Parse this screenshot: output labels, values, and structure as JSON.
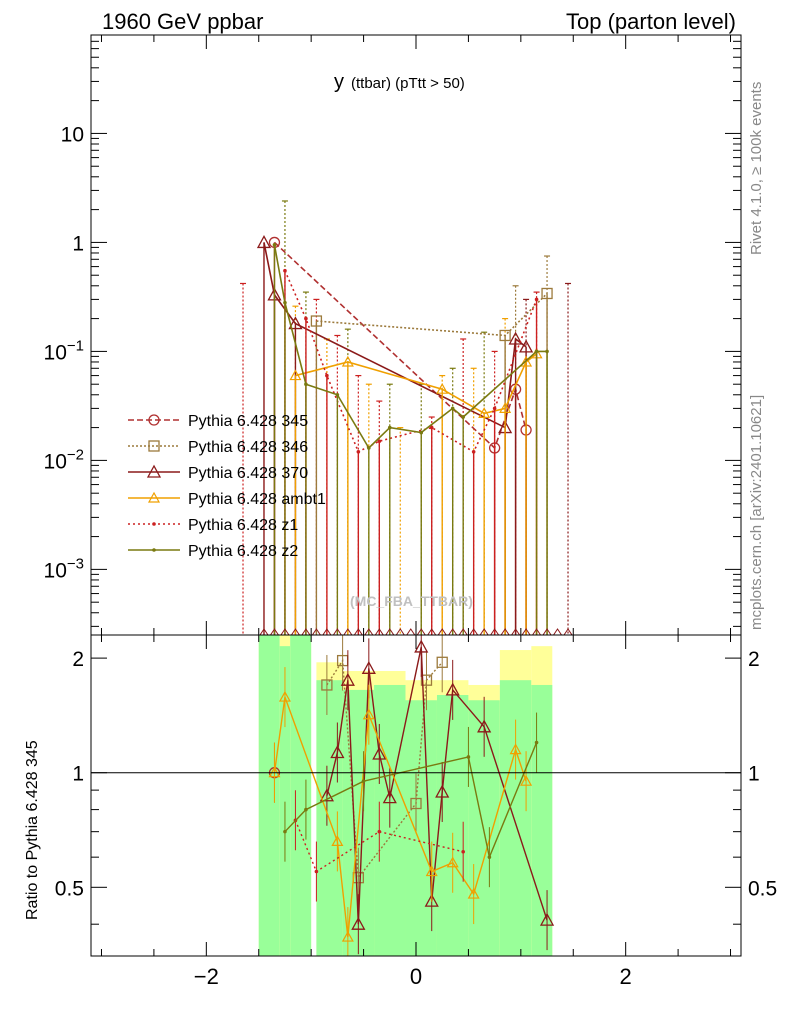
{
  "header": {
    "left": "1960 GeV ppbar",
    "right": "Top (parton level)"
  },
  "side_labels": {
    "rivet": "Rivet 4.1.0, ≥ 100k events",
    "mcplots": "mcplots.cern.ch [arXiv:2401.10621]"
  },
  "chart_data": {
    "type": "line",
    "title": "y",
    "subtitle": "(ttbar) (pTtt > 50)",
    "watermark": "(MC_FBA_TTBAR)",
    "xlabel": "",
    "ylabel_main": "",
    "ylabel_ratio": "Ratio to Pythia 6.428 345",
    "xlim": [
      -3.1,
      3.1
    ],
    "ylim_main": [
      0.00025,
      80
    ],
    "yscale_main": "log",
    "ylim_ratio": [
      0.33,
      2.3
    ],
    "yscale_ratio": "log",
    "x_ticks": [
      -2,
      0,
      2
    ],
    "x_tick_labels": [
      "−2",
      "0",
      "2"
    ],
    "y_ticks_main": [
      {
        "v": 10,
        "m": "10",
        "e": ""
      },
      {
        "v": 1,
        "m": "1",
        "e": ""
      },
      {
        "v": 0.1,
        "m": "10",
        "e": "−1"
      },
      {
        "v": 0.01,
        "m": "10",
        "e": "−2"
      },
      {
        "v": 0.001,
        "m": "10",
        "e": "−3"
      }
    ],
    "y_ticks_ratio": [
      {
        "v": 2,
        "label": "2"
      },
      {
        "v": 1,
        "label": "1"
      },
      {
        "v": 0.5,
        "label": "0.5"
      }
    ],
    "legend_position": "middle-left",
    "series": [
      {
        "name": "Pythia 6.428 345",
        "color": "#b03030",
        "dash": "6,3",
        "marker": "circle",
        "points": [
          [
            -1.35,
            1.0
          ],
          [
            0.75,
            0.013
          ],
          [
            0.95,
            0.045
          ],
          [
            1.05,
            0.019
          ]
        ],
        "ratio": [
          [
            -1.35,
            1.0
          ]
        ]
      },
      {
        "name": "Pythia 6.428 346",
        "color": "#9c7a3c",
        "dash": "2,2",
        "marker": "square",
        "points": [
          [
            -0.95,
            0.19
          ],
          [
            0.85,
            0.14
          ],
          [
            1.25,
            0.34
          ]
        ],
        "ratio": [
          [
            -0.85,
            1.7
          ],
          [
            -0.7,
            1.97
          ],
          [
            -0.55,
            0.53
          ],
          [
            0.0,
            0.83
          ],
          [
            0.1,
            1.75
          ],
          [
            0.25,
            1.95
          ]
        ]
      },
      {
        "name": "Pythia 6.428 370",
        "color": "#8b1a1a",
        "dash": "",
        "marker": "triangle",
        "points": [
          [
            -1.45,
            1.0
          ],
          [
            -1.35,
            0.33
          ],
          [
            -1.15,
            0.18
          ],
          [
            0.85,
            0.02
          ],
          [
            0.95,
            0.13
          ],
          [
            1.05,
            0.11
          ]
        ],
        "ratio": [
          [
            -0.85,
            0.87
          ],
          [
            -0.75,
            1.13
          ],
          [
            -0.65,
            1.75
          ],
          [
            -0.55,
            0.4
          ],
          [
            -0.45,
            1.88
          ],
          [
            -0.35,
            1.12
          ],
          [
            -0.25,
            0.86
          ],
          [
            0.05,
            2.14
          ],
          [
            0.15,
            0.46
          ],
          [
            0.25,
            0.89
          ],
          [
            0.35,
            1.65
          ],
          [
            0.65,
            1.32
          ],
          [
            1.25,
            0.41
          ]
        ]
      },
      {
        "name": "Pythia 6.428 ambt1",
        "color": "#f0a000",
        "dash": "",
        "marker": "triangle-filled",
        "points": [
          [
            -1.15,
            0.06
          ],
          [
            -0.65,
            0.08
          ],
          [
            0.25,
            0.045
          ],
          [
            0.65,
            0.027
          ],
          [
            0.85,
            0.03
          ],
          [
            1.05,
            0.08
          ],
          [
            1.15,
            0.095
          ]
        ],
        "ratio": [
          [
            -1.35,
            1.0
          ],
          [
            -1.25,
            1.58
          ],
          [
            -0.75,
            0.66
          ],
          [
            -0.65,
            0.37
          ],
          [
            -0.45,
            1.42
          ],
          [
            0.15,
            0.55
          ],
          [
            0.35,
            0.58
          ],
          [
            0.55,
            0.48
          ],
          [
            0.95,
            1.15
          ],
          [
            1.05,
            0.95
          ]
        ]
      },
      {
        "name": "Pythia 6.428 z1",
        "color": "#cc2020",
        "dash": "2,3",
        "marker": "dot",
        "points": [
          [
            -1.25,
            0.55
          ],
          [
            -1.05,
            0.2
          ],
          [
            -0.85,
            0.06
          ],
          [
            -0.55,
            0.012
          ],
          [
            -0.35,
            0.015
          ],
          [
            0.15,
            0.02
          ],
          [
            0.55,
            0.012
          ],
          [
            0.75,
            0.03
          ],
          [
            1.15,
            0.3
          ]
        ],
        "ratio": [
          [
            -1.15,
            0.75
          ],
          [
            -0.95,
            0.55
          ],
          [
            -0.35,
            0.7
          ],
          [
            0.45,
            0.62
          ]
        ]
      },
      {
        "name": "Pythia 6.428 z2",
        "color": "#7a7a10",
        "dash": "",
        "marker": "dot",
        "points": [
          [
            -1.35,
            0.95
          ],
          [
            -1.25,
            0.28
          ],
          [
            -1.05,
            0.05
          ],
          [
            -0.75,
            0.04
          ],
          [
            -0.45,
            0.013
          ],
          [
            -0.25,
            0.02
          ],
          [
            0.05,
            0.018
          ],
          [
            0.35,
            0.03
          ],
          [
            0.45,
            0.025
          ],
          [
            1.15,
            0.1
          ],
          [
            1.25,
            0.1
          ]
        ],
        "ratio": [
          [
            -1.25,
            0.7
          ],
          [
            -1.05,
            0.8
          ],
          [
            -0.5,
            0.95
          ],
          [
            0.5,
            1.1
          ],
          [
            0.7,
            0.6
          ],
          [
            1.15,
            1.2
          ]
        ]
      }
    ],
    "spikes": [
      {
        "x": -1.65,
        "y": 0.42,
        "color": "#cc2020"
      },
      {
        "x": -1.25,
        "y": 2.4,
        "color": "#7a7a10"
      },
      {
        "x": -1.15,
        "y": 0.26,
        "color": "#f0a000"
      },
      {
        "x": -1.05,
        "y": 0.35,
        "color": "#7a7a10"
      },
      {
        "x": -0.95,
        "y": 0.3,
        "color": "#cc2020"
      },
      {
        "x": -0.85,
        "y": 0.13,
        "color": "#f0a000"
      },
      {
        "x": -0.75,
        "y": 0.14,
        "color": "#cc2020"
      },
      {
        "x": -0.65,
        "y": 0.16,
        "color": "#7a7a10"
      },
      {
        "x": -0.55,
        "y": 0.06,
        "color": "#cc2020"
      },
      {
        "x": -0.45,
        "y": 0.05,
        "color": "#f0a000"
      },
      {
        "x": -0.35,
        "y": 0.035,
        "color": "#cc2020"
      },
      {
        "x": -0.25,
        "y": 0.05,
        "color": "#7a7a10"
      },
      {
        "x": -0.15,
        "y": 0.02,
        "color": "#f0a000"
      },
      {
        "x": 0.05,
        "y": 0.05,
        "color": "#7a7a10"
      },
      {
        "x": 0.15,
        "y": 0.025,
        "color": "#cc2020"
      },
      {
        "x": 0.25,
        "y": 0.06,
        "color": "#f0a000"
      },
      {
        "x": 0.35,
        "y": 0.07,
        "color": "#7a7a10"
      },
      {
        "x": 0.45,
        "y": 0.13,
        "color": "#cc2020"
      },
      {
        "x": 0.55,
        "y": 0.07,
        "color": "#f0a000"
      },
      {
        "x": 0.65,
        "y": 0.15,
        "color": "#7a7a10"
      },
      {
        "x": 0.75,
        "y": 0.1,
        "color": "#cc2020"
      },
      {
        "x": 0.85,
        "y": 0.2,
        "color": "#f0a000"
      },
      {
        "x": 0.95,
        "y": 0.4,
        "color": "#9c7a3c"
      },
      {
        "x": 1.05,
        "y": 0.3,
        "color": "#8b1a1a"
      },
      {
        "x": 1.15,
        "y": 0.35,
        "color": "#cc2020"
      },
      {
        "x": 1.25,
        "y": 0.75,
        "color": "#9c7a3c"
      },
      {
        "x": 1.45,
        "y": 0.42,
        "color": "#8b1a1a"
      }
    ],
    "ratio_bands": [
      {
        "x0": -1.5,
        "x1": -1.3,
        "inner": [
          0.33,
          2.3
        ],
        "outer": [
          0.33,
          2.3
        ]
      },
      {
        "x0": -1.3,
        "x1": -1.2,
        "inner": [
          0.33,
          2.15
        ],
        "outer": [
          0.33,
          2.3
        ]
      },
      {
        "x0": -1.2,
        "x1": -1.0,
        "inner": [
          0.33,
          2.3
        ],
        "outer": [
          0.33,
          2.3
        ]
      },
      {
        "x0": -0.95,
        "x1": -0.7,
        "inner": [
          0.33,
          1.75
        ],
        "outer": [
          0.33,
          1.95
        ]
      },
      {
        "x0": -0.7,
        "x1": -0.4,
        "inner": [
          0.33,
          1.65
        ],
        "outer": [
          0.33,
          1.85
        ]
      },
      {
        "x0": -0.4,
        "x1": -0.1,
        "inner": [
          0.33,
          1.7
        ],
        "outer": [
          0.33,
          1.85
        ]
      },
      {
        "x0": -0.1,
        "x1": 0.2,
        "inner": [
          0.33,
          1.55
        ],
        "outer": [
          0.33,
          1.75
        ]
      },
      {
        "x0": 0.2,
        "x1": 0.5,
        "inner": [
          0.33,
          1.6
        ],
        "outer": [
          0.33,
          1.75
        ]
      },
      {
        "x0": 0.5,
        "x1": 0.8,
        "inner": [
          0.33,
          1.55
        ],
        "outer": [
          0.33,
          1.7
        ]
      },
      {
        "x0": 0.8,
        "x1": 1.1,
        "inner": [
          0.33,
          1.75
        ],
        "outer": [
          0.33,
          2.1
        ]
      },
      {
        "x0": 1.1,
        "x1": 1.3,
        "inner": [
          0.33,
          1.7
        ],
        "outer": [
          0.33,
          2.15
        ]
      }
    ]
  }
}
